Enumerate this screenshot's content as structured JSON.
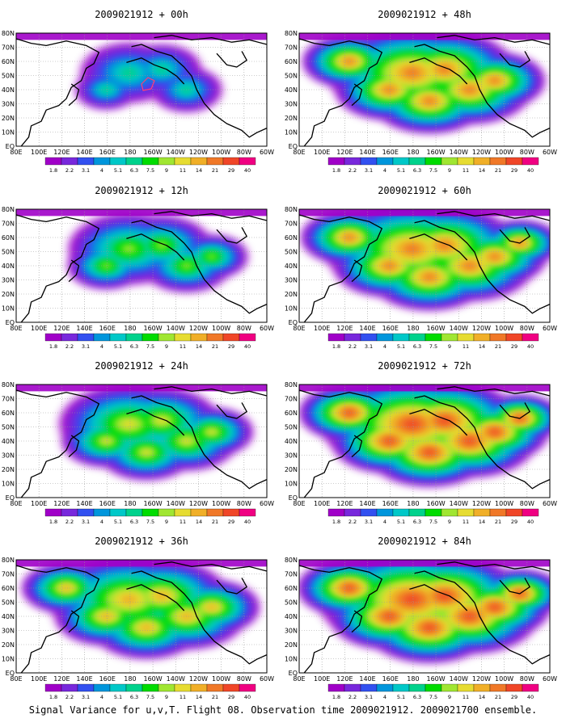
{
  "figure": {
    "caption": "Signal Variance for u,v,T. Flight 08. Observation time 2009021912. 2009021700 ensemble.",
    "lat_labels": [
      "80N",
      "70N",
      "60N",
      "50N",
      "40N",
      "30N",
      "20N",
      "10N",
      "EQ"
    ],
    "lon_labels": [
      "80E",
      "100E",
      "120E",
      "140E",
      "160E",
      "180",
      "160W",
      "140W",
      "120W",
      "100W",
      "80W",
      "60W"
    ],
    "colorbar": {
      "levels": [
        "1.8",
        "2.2",
        "3.1",
        "4",
        "5.1",
        "6.3",
        "7.5",
        "9",
        "11",
        "14",
        "21",
        "29",
        "40"
      ],
      "colors": [
        "#a000c8",
        "#7828dc",
        "#3250f0",
        "#0096dc",
        "#00c8c8",
        "#00d28c",
        "#00dc00",
        "#a0e632",
        "#e6dc32",
        "#f0af28",
        "#f07828",
        "#f04628",
        "#f00082"
      ]
    }
  },
  "panels": [
    {
      "title": "2009021912 + 00h",
      "intensity": 0.25,
      "has_target": true
    },
    {
      "title": "2009021912 + 12h",
      "intensity": 0.45,
      "has_target": false
    },
    {
      "title": "2009021912 + 24h",
      "intensity": 0.6,
      "has_target": false
    },
    {
      "title": "2009021912 + 36h",
      "intensity": 0.78,
      "has_target": false
    },
    {
      "title": "2009021912 + 48h",
      "intensity": 0.85,
      "has_target": false
    },
    {
      "title": "2009021912 + 60h",
      "intensity": 0.9,
      "has_target": false
    },
    {
      "title": "2009021912 + 72h",
      "intensity": 0.95,
      "has_target": false
    },
    {
      "title": "2009021912 + 84h",
      "intensity": 1.0,
      "has_target": false
    }
  ]
}
